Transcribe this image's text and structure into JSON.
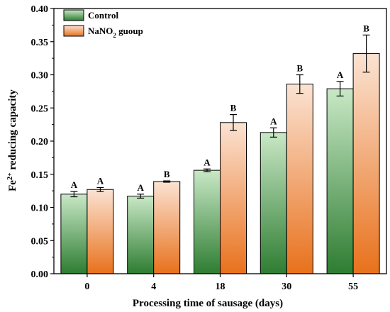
{
  "chart_data": {
    "type": "bar",
    "xlabel": "Processing time of sausage (days)",
    "ylabel": {
      "base": "Fe",
      "sup": "2+",
      "rest": " reducing capacity"
    },
    "ylim": [
      0,
      0.4
    ],
    "yticks": [
      "0.00",
      "0.05",
      "0.10",
      "0.15",
      "0.20",
      "0.25",
      "0.30",
      "0.35",
      "0.40"
    ],
    "categories": [
      "0",
      "4",
      "18",
      "30",
      "55"
    ],
    "grid": false,
    "legend_position": "top-left",
    "series": [
      {
        "name": "Control",
        "name_parts": {
          "base": "Control",
          "sub": "",
          "rest": ""
        },
        "colors": {
          "top": "#c9e8c6",
          "bottom": "#2e7d32",
          "edge": "#000000"
        },
        "values": [
          0.12,
          0.117,
          0.156,
          0.213,
          0.279
        ],
        "errors": [
          0.004,
          0.003,
          0.002,
          0.007,
          0.011
        ],
        "labels": [
          "A",
          "A",
          "A",
          "A",
          "A"
        ]
      },
      {
        "name": "NaNO2 guoup",
        "name_parts": {
          "base": "NaNO",
          "sub": "2",
          "rest": " guoup"
        },
        "colors": {
          "top": "#fbe3d3",
          "bottom": "#e8711c",
          "edge": "#000000"
        },
        "values": [
          0.127,
          0.139,
          0.228,
          0.286,
          0.332
        ],
        "errors": [
          0.003,
          0.001,
          0.012,
          0.014,
          0.028
        ],
        "labels": [
          "A",
          "B",
          "B",
          "B",
          "B"
        ]
      }
    ]
  }
}
